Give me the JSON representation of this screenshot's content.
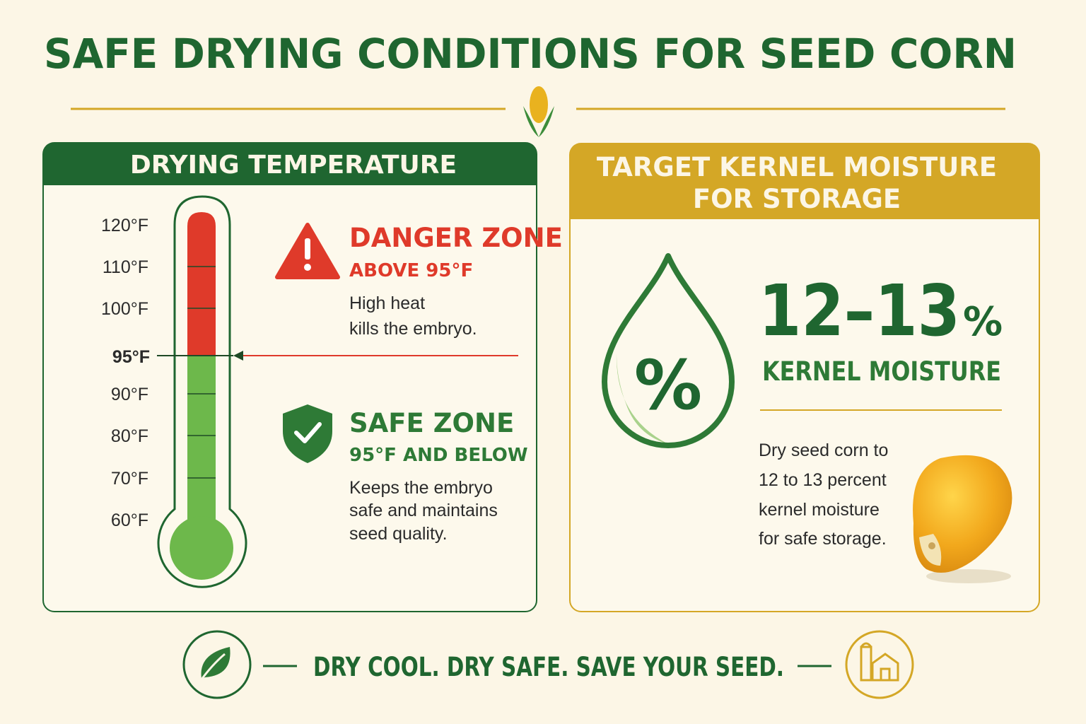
{
  "title": "SAFE DRYING CONDITIONS FOR SEED CORN",
  "temperature_panel": {
    "heading": "DRYING TEMPERATURE",
    "scale_above": [
      "120°F",
      "110°F",
      "100°F"
    ],
    "threshold": "95°F",
    "scale_below": [
      "90°F",
      "80°F",
      "70°F",
      "60°F"
    ],
    "danger": {
      "title": "DANGER ZONE",
      "subtitle": "ABOVE 95°F",
      "text": [
        "High heat",
        "kills the embryo."
      ]
    },
    "safe": {
      "title": "SAFE ZONE",
      "subtitle": "95°F AND BELOW",
      "text": [
        "Keeps the embryo",
        "safe and maintains",
        "seed quality."
      ]
    }
  },
  "moisture_panel": {
    "heading": [
      "TARGET KERNEL MOISTURE",
      "FOR STORAGE"
    ],
    "icon_label": "%",
    "value": "12–13",
    "unit": "%",
    "label": "KERNEL MOISTURE",
    "text": [
      "Dry seed corn to",
      "12 to 13 percent",
      "kernel moisture",
      "for safe storage."
    ]
  },
  "footer": {
    "slogan": "DRY COOL. DRY SAFE. SAVE YOUR SEED."
  }
}
